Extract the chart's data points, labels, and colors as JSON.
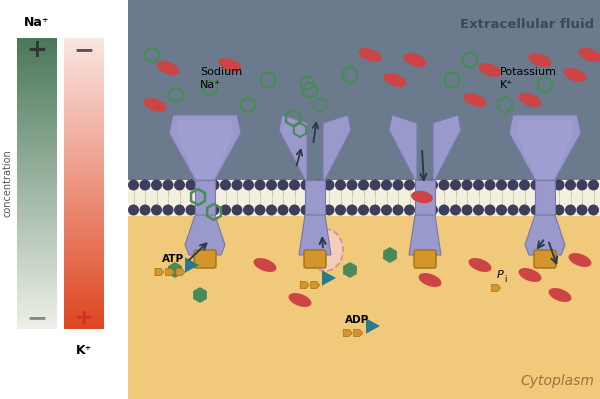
{
  "bg_extracellular": "#6b7a8d",
  "bg_cytoplasm": "#f0c97a",
  "membrane_bead_color": "#3d3d5c",
  "protein_color": "#9999cc",
  "protein_dark": "#7777aa",
  "protein_light": "#aaaadd",
  "sodium_color": "#4a8a5a",
  "potassium_color": "#cc4444",
  "atp_color": "#2a7a8a",
  "phosphate_color": "#d4952a",
  "label_extracellular": "Extracellular fluid",
  "label_cytoplasm": "Cytoplasm",
  "text_na": "Na⁺",
  "text_k": "K⁺",
  "gradient_green_dark": [
    0.29,
    0.47,
    0.35
  ],
  "gradient_green_light": [
    0.93,
    0.94,
    0.91
  ],
  "gradient_red_light": [
    0.98,
    0.9,
    0.88
  ],
  "gradient_red_dark": [
    0.87,
    0.27,
    0.13
  ]
}
